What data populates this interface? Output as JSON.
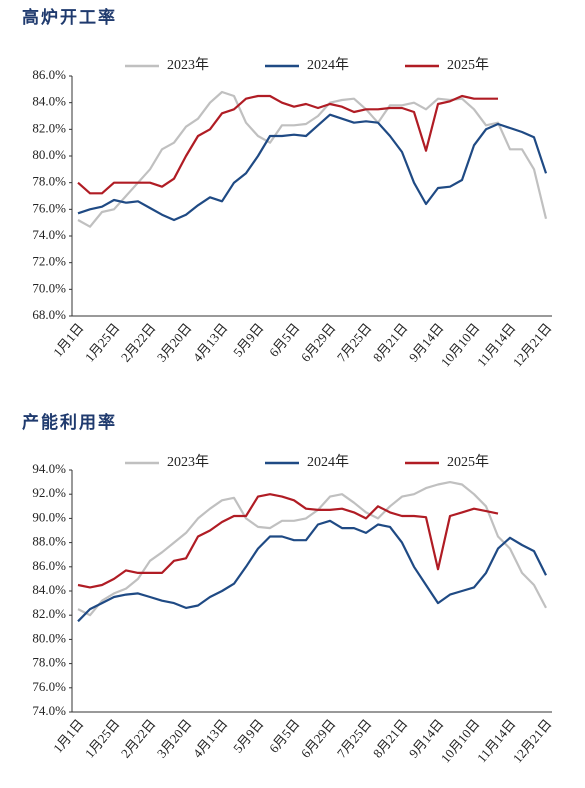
{
  "chart_data": [
    {
      "type": "line",
      "title": "高炉开工率",
      "categories": [
        "1月1日",
        null,
        null,
        "1月25日",
        null,
        null,
        "2月22日",
        null,
        null,
        "3月20日",
        null,
        null,
        "4月13日",
        null,
        null,
        "5月9日",
        null,
        null,
        "6月5日",
        null,
        null,
        "6月29日",
        null,
        null,
        "7月25日",
        null,
        null,
        "8月21日",
        null,
        null,
        "9月14日",
        null,
        null,
        "10月10日",
        null,
        null,
        "11月14日",
        null,
        null,
        "12月21日"
      ],
      "ylim": [
        68,
        86
      ],
      "yticks": [
        {
          "value": 68,
          "label": "68.0%"
        },
        {
          "value": 70,
          "label": "70.0%"
        },
        {
          "value": 72,
          "label": "72.0%"
        },
        {
          "value": 74,
          "label": "74.0%"
        },
        {
          "value": 76,
          "label": "76.0%"
        },
        {
          "value": 78,
          "label": "78.0%"
        },
        {
          "value": 80,
          "label": "80.0%"
        },
        {
          "value": 82,
          "label": "82.0%"
        },
        {
          "value": 84,
          "label": "84.0%"
        },
        {
          "value": 86,
          "label": "86.0%"
        }
      ],
      "series": [
        {
          "name": "2023年",
          "color": "#c0c0c0",
          "values": [
            75.2,
            74.7,
            75.8,
            76,
            77,
            78,
            79,
            80.5,
            81,
            82.2,
            82.8,
            84,
            84.8,
            84.5,
            82.5,
            81.5,
            81,
            82.3,
            82.3,
            82.4,
            83,
            84,
            84.2,
            84.3,
            83.5,
            82.5,
            83.8,
            83.8,
            84,
            83.5,
            84.3,
            84.2,
            84.3,
            83.5,
            82.3,
            82.5,
            80.5,
            80.5,
            79,
            75.3
          ]
        },
        {
          "name": "2024年",
          "color": "#1f4a84",
          "values": [
            75.7,
            76,
            76.2,
            76.7,
            76.5,
            76.6,
            76.1,
            75.6,
            75.2,
            75.6,
            76.3,
            76.9,
            76.6,
            78,
            78.7,
            80,
            81.5,
            81.5,
            81.6,
            81.5,
            82.3,
            83.1,
            82.8,
            82.5,
            82.6,
            82.5,
            81.5,
            80.3,
            78,
            76.4,
            77.6,
            77.7,
            78.2,
            80.8,
            82,
            82.4,
            82.1,
            81.8,
            81.4,
            78.7
          ]
        },
        {
          "name": "2025年",
          "color": "#b01c24",
          "values": [
            78,
            77.2,
            77.2,
            78,
            78,
            78,
            78,
            77.7,
            78.3,
            80,
            81.5,
            82,
            83.2,
            83.5,
            84.3,
            84.5,
            84.5,
            84,
            83.7,
            83.9,
            83.6,
            83.9,
            83.7,
            83.3,
            83.5,
            83.5,
            83.6,
            83.6,
            83.3,
            80.4,
            83.9,
            84.1,
            84.5,
            84.3,
            84.3,
            84.3,
            null,
            null,
            null,
            null
          ]
        }
      ]
    },
    {
      "type": "line",
      "title": "产能利用率",
      "categories": [
        "1月1日",
        null,
        null,
        "1月25日",
        null,
        null,
        "2月22日",
        null,
        null,
        "3月20日",
        null,
        null,
        "4月13日",
        null,
        null,
        "5月9日",
        null,
        null,
        "6月5日",
        null,
        null,
        "6月29日",
        null,
        null,
        "7月25日",
        null,
        null,
        "8月21日",
        null,
        null,
        "9月14日",
        null,
        null,
        "10月10日",
        null,
        null,
        "11月14日",
        null,
        null,
        "12月21日"
      ],
      "ylim": [
        74,
        94
      ],
      "yticks": [
        {
          "value": 74,
          "label": "74.0%"
        },
        {
          "value": 76,
          "label": "76.0%"
        },
        {
          "value": 78,
          "label": "78.0%"
        },
        {
          "value": 80,
          "label": "80.0%"
        },
        {
          "value": 82,
          "label": "82.0%"
        },
        {
          "value": 84,
          "label": "84.0%"
        },
        {
          "value": 86,
          "label": "86.0%"
        },
        {
          "value": 88,
          "label": "88.0%"
        },
        {
          "value": 90,
          "label": "90.0%"
        },
        {
          "value": 92,
          "label": "92.0%"
        },
        {
          "value": 94,
          "label": "94.0%"
        }
      ],
      "series": [
        {
          "name": "2023年",
          "color": "#c0c0c0",
          "values": [
            82.5,
            82,
            83.2,
            83.8,
            84.2,
            85,
            86.5,
            87.2,
            88,
            88.8,
            90,
            90.8,
            91.5,
            91.7,
            90,
            89.3,
            89.2,
            89.8,
            89.8,
            90,
            90.7,
            91.8,
            92,
            91.3,
            90.5,
            90,
            91,
            91.8,
            92,
            92.5,
            92.8,
            93,
            92.8,
            92,
            91,
            88.5,
            87.5,
            85.5,
            84.5,
            82.6
          ]
        },
        {
          "name": "2024年",
          "color": "#1f4a84",
          "values": [
            81.5,
            82.5,
            83,
            83.5,
            83.7,
            83.8,
            83.5,
            83.2,
            83,
            82.6,
            82.8,
            83.5,
            84,
            84.6,
            86,
            87.5,
            88.5,
            88.5,
            88.2,
            88.2,
            89.5,
            89.8,
            89.2,
            89.2,
            88.8,
            89.5,
            89.3,
            88,
            86,
            84.5,
            83,
            83.7,
            84,
            84.3,
            85.5,
            87.5,
            88.4,
            87.8,
            87.3,
            85.3
          ]
        },
        {
          "name": "2025年",
          "color": "#b01c24",
          "values": [
            84.5,
            84.3,
            84.5,
            85,
            85.7,
            85.5,
            85.5,
            85.5,
            86.5,
            86.7,
            88.5,
            89,
            89.7,
            90.2,
            90.2,
            91.8,
            92,
            91.8,
            91.5,
            90.8,
            90.7,
            90.7,
            90.8,
            90.5,
            90,
            91,
            90.5,
            90.2,
            90.2,
            90.1,
            85.8,
            90.2,
            90.5,
            90.8,
            90.6,
            90.4,
            null,
            null,
            null,
            null
          ]
        }
      ]
    }
  ]
}
